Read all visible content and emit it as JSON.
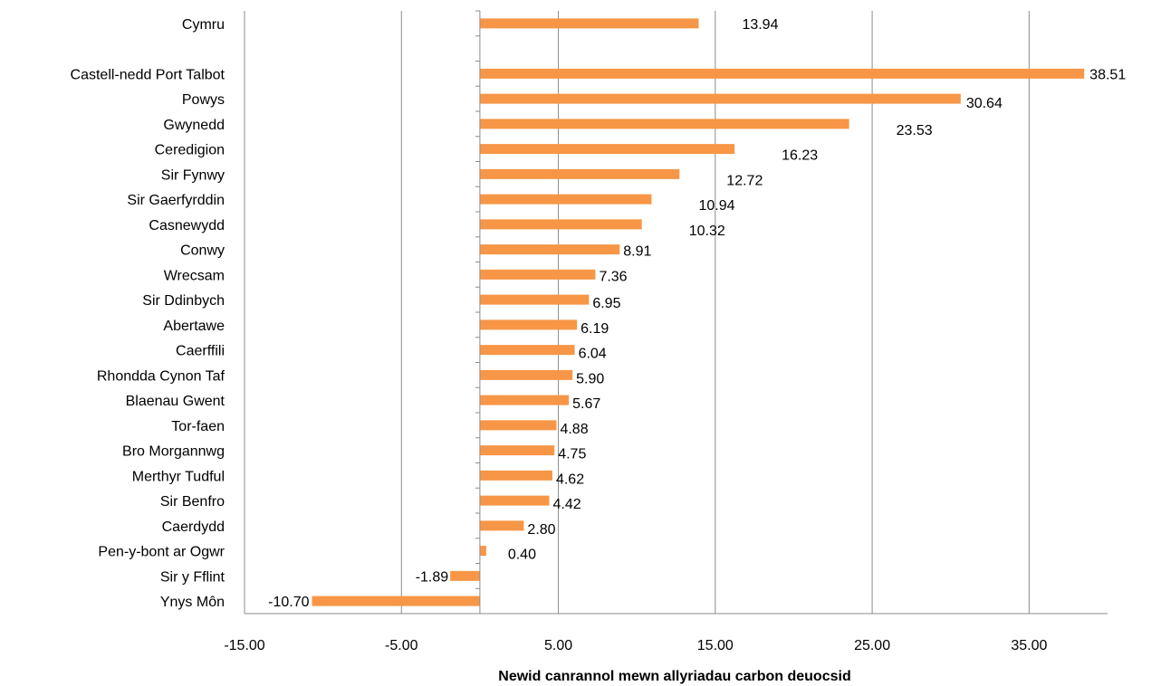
{
  "chart_data": {
    "type": "bar",
    "orientation": "horizontal",
    "xlabel": "Newid canrannol mewn allyriadau carbon deuocsid",
    "xlim": [
      -15,
      40
    ],
    "xticks": [
      -15,
      -5,
      5,
      15,
      25,
      35
    ],
    "xtick_labels": [
      "-15.00",
      "-5.00",
      "5.00",
      "15.00",
      "25.00",
      "35.00"
    ],
    "grid": "vertical",
    "bar_color": "#F79646",
    "categories": [
      "Cymru",
      "",
      "Castell-nedd Port Talbot",
      "Powys",
      "Gwynedd",
      "Ceredigion",
      "Sir Fynwy",
      "Sir Gaerfyrddin",
      "Casnewydd",
      "Conwy",
      "Wrecsam",
      "Sir Ddinbych",
      "Abertawe",
      "Caerffili",
      "Rhondda Cynon Taf",
      "Blaenau Gwent",
      "Tor-faen",
      "Bro Morgannwg",
      "Merthyr Tudful",
      "Sir Benfro",
      "Caerdydd",
      "Pen-y-bont ar Ogwr",
      "Sir y Fflint",
      "Ynys Môn"
    ],
    "values": [
      13.94,
      null,
      38.51,
      30.64,
      23.53,
      16.23,
      12.72,
      10.94,
      10.32,
      8.91,
      7.36,
      6.95,
      6.19,
      6.04,
      5.9,
      5.67,
      4.88,
      4.75,
      4.62,
      4.42,
      2.8,
      0.4,
      -1.89,
      -10.7
    ],
    "value_labels": [
      "13.94",
      "",
      "38.51",
      "30.64",
      "23.53",
      "16.23",
      "12.72",
      "10.94",
      "10.32",
      "8.91",
      "7.36",
      "6.95",
      "6.19",
      "6.04",
      "5.90",
      "5.67",
      "4.88",
      "4.75",
      "4.62",
      "4.42",
      "2.80",
      "0.40",
      "-1.89",
      "-10.70"
    ]
  }
}
